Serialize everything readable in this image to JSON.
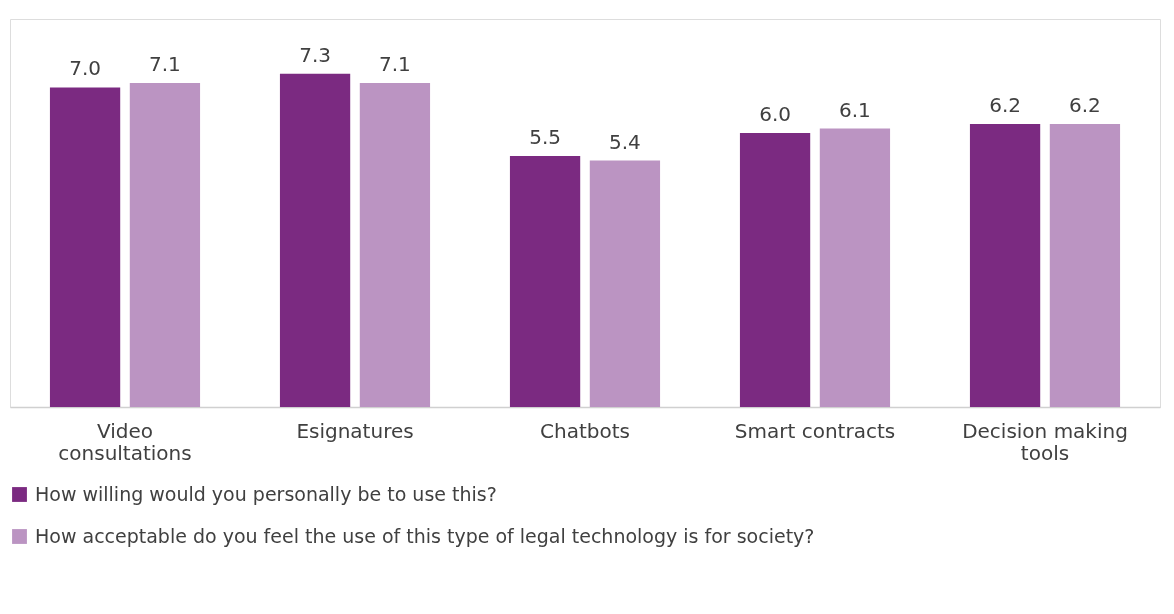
{
  "chart_data": {
    "type": "bar",
    "categories": [
      "Video consultations",
      "Esignatures",
      "Chatbots",
      "Smart contracts",
      "Decision making tools"
    ],
    "series": [
      {
        "name": "How willing would you personally be to use this?",
        "color": "#7b2a81",
        "values": [
          7.0,
          7.3,
          5.5,
          6.0,
          6.2
        ],
        "value_labels": [
          "7.0",
          "7.3",
          "5.5",
          "6.0",
          "6.2"
        ]
      },
      {
        "name": "How acceptable do you feel the use of this type of legal technology is for society?",
        "color": "#bb94c2",
        "values": [
          7.1,
          7.1,
          5.4,
          6.1,
          6.2
        ],
        "value_labels": [
          "7.1",
          "7.1",
          "5.4",
          "6.1",
          "6.2"
        ]
      }
    ],
    "ylim": [
      0,
      8.5
    ],
    "legend": "bottom",
    "grid": false
  }
}
